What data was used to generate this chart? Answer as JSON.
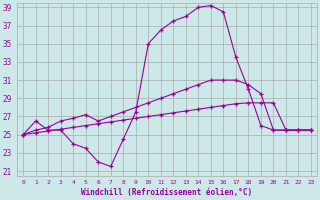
{
  "bg_color": "#cce8e8",
  "grid_color": "#aaaaaa",
  "line_color": "#990099",
  "marker": "+",
  "xlabel": "Windchill (Refroidissement éolien,°C)",
  "xlabel_color": "#990099",
  "xticks": [
    0,
    1,
    2,
    3,
    4,
    5,
    6,
    7,
    8,
    9,
    10,
    11,
    12,
    13,
    14,
    15,
    16,
    17,
    18,
    19,
    20,
    21,
    22,
    23
  ],
  "yticks": [
    21,
    23,
    25,
    27,
    29,
    31,
    33,
    35,
    37,
    39
  ],
  "xlim": [
    -0.5,
    23.5
  ],
  "ylim": [
    20.5,
    39.5
  ],
  "series": [
    [
      25.0,
      26.5,
      25.5,
      25.5,
      24.0,
      23.5,
      22.0,
      21.5,
      24.5,
      27.5,
      35.0,
      36.5,
      37.5,
      38.0,
      39.0,
      39.2,
      38.5,
      33.5,
      30.0,
      26.0,
      25.5,
      25.5,
      25.5,
      25.5
    ],
    [
      25.0,
      25.5,
      25.8,
      26.5,
      26.8,
      27.2,
      26.5,
      27.0,
      27.5,
      28.0,
      28.5,
      29.0,
      29.5,
      30.0,
      30.5,
      31.0,
      31.0,
      31.0,
      30.5,
      29.5,
      25.5,
      25.5,
      25.5,
      25.5
    ],
    [
      25.0,
      25.2,
      25.4,
      25.6,
      25.8,
      26.0,
      26.2,
      26.4,
      26.6,
      26.8,
      27.0,
      27.2,
      27.4,
      27.6,
      27.8,
      28.0,
      28.2,
      28.4,
      28.5,
      28.5,
      28.5,
      25.5,
      25.5,
      25.5
    ]
  ]
}
